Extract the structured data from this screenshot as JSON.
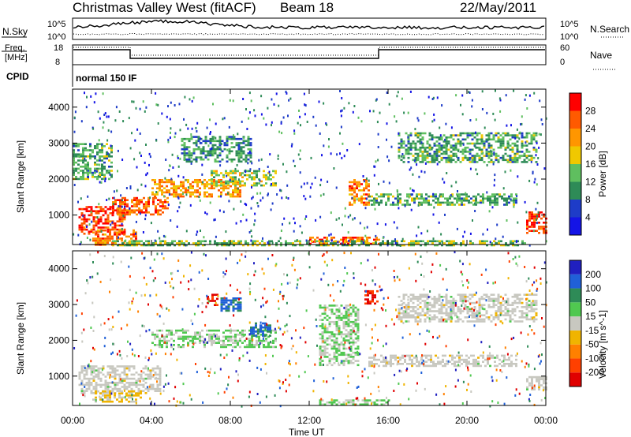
{
  "header": {
    "station": "Christmas Valley West (fitACF)",
    "beam": "Beam 18",
    "date": "22/May/2011"
  },
  "summary": {
    "nsky_label": "N.Sky",
    "nsearch_label": "N.Search",
    "left_ticks": [
      "10^5",
      "10^0"
    ],
    "right_ticks": [
      "10^5",
      "10^0"
    ],
    "freq_label_line1": "Freq.",
    "freq_label_line2": "[MHz]",
    "freq_ticks": [
      "18",
      "8"
    ],
    "nave_label": "Nave",
    "nave_ticks": [
      "60",
      "0"
    ],
    "cpid_label": "CPID",
    "cpid_value": "normal 150 IF"
  },
  "colors": {
    "power": [
      "#1414e6",
      "#1e3cc8",
      "#2e8b57",
      "#5fbf5f",
      "#f0c800",
      "#ff9600",
      "#ff5a00",
      "#ff0000"
    ],
    "velocity": [
      "#2020c0",
      "#2060d8",
      "#2e8b57",
      "#50c850",
      "#c8c8c0",
      "#f0b400",
      "#ff8000",
      "#ff4000",
      "#e00000"
    ],
    "background": "#ffffff"
  },
  "chart_data": [
    {
      "type": "heatmap",
      "name": "power",
      "ylabel": "Slant Range [km]",
      "xlabel": "",
      "x_ticks": [
        "00:00",
        "04:00",
        "08:00",
        "12:00",
        "16:00",
        "20:00",
        "00:00"
      ],
      "y_ticks": [
        "1000",
        "2000",
        "3000",
        "4000"
      ],
      "xlim_hours": [
        0,
        24
      ],
      "ylim_km": [
        180,
        4500
      ],
      "colorbar": {
        "label": "Power [dB]",
        "tick_labels": [
          "4",
          "8",
          "12",
          "16",
          "20",
          "24",
          "28"
        ],
        "range": [
          0,
          32
        ]
      },
      "regions": [
        {
          "t": [
            0.3,
            2.6
          ],
          "r": [
            500,
            1250
          ],
          "value": 28
        },
        {
          "t": [
            1.0,
            3.2
          ],
          "r": [
            150,
            600
          ],
          "value": 24
        },
        {
          "t": [
            2.0,
            4.8
          ],
          "r": [
            1000,
            1500
          ],
          "value": 26
        },
        {
          "t": [
            4.0,
            8.5
          ],
          "r": [
            1500,
            2000
          ],
          "value": 22
        },
        {
          "t": [
            7.0,
            10.3
          ],
          "r": [
            1800,
            2250
          ],
          "value": 16
        },
        {
          "t": [
            0.0,
            2.0
          ],
          "r": [
            2000,
            3000
          ],
          "value": 12
        },
        {
          "t": [
            5.5,
            9.0
          ],
          "r": [
            2500,
            3200
          ],
          "value": 10
        },
        {
          "t": [
            12.0,
            15.5
          ],
          "r": [
            200,
            400
          ],
          "value": 26
        },
        {
          "t": [
            14.0,
            15.0
          ],
          "r": [
            1300,
            2000
          ],
          "value": 24
        },
        {
          "t": [
            15.0,
            22.5
          ],
          "r": [
            1300,
            1600
          ],
          "value": 12
        },
        {
          "t": [
            16.5,
            23.5
          ],
          "r": [
            2500,
            3300
          ],
          "value": 12
        },
        {
          "t": [
            23.0,
            24.0
          ],
          "r": [
            500,
            1100
          ],
          "value": 28
        },
        {
          "t": [
            2.0,
            23.0
          ],
          "r": [
            180,
            300
          ],
          "value": 14
        }
      ]
    },
    {
      "type": "heatmap",
      "name": "velocity",
      "ylabel": "Slant Range [km]",
      "xlabel": "Time UT",
      "x_ticks": [
        "00:00",
        "04:00",
        "08:00",
        "12:00",
        "16:00",
        "20:00",
        "00:00"
      ],
      "y_ticks": [
        "1000",
        "2000",
        "3000",
        "4000"
      ],
      "xlim_hours": [
        0,
        24
      ],
      "ylim_km": [
        180,
        4500
      ],
      "colorbar": {
        "label": "Velocity [m s^-1]",
        "tick_labels": [
          "200",
          "100",
          "50",
          "15",
          "-15",
          "-50",
          "-100",
          "-200"
        ],
        "range": [
          -250,
          250
        ]
      },
      "regions": [
        {
          "t": [
            0.3,
            4.5
          ],
          "r": [
            500,
            1300
          ],
          "value": 0
        },
        {
          "t": [
            4.0,
            10.3
          ],
          "r": [
            1800,
            2300
          ],
          "value": 30
        },
        {
          "t": [
            6.8,
            7.3
          ],
          "r": [
            3000,
            3300
          ],
          "value": -200
        },
        {
          "t": [
            7.5,
            8.5
          ],
          "r": [
            2800,
            3200
          ],
          "value": 150
        },
        {
          "t": [
            9.0,
            10.0
          ],
          "r": [
            2100,
            2500
          ],
          "value": 150
        },
        {
          "t": [
            12.5,
            14.5
          ],
          "r": [
            1300,
            3000
          ],
          "value": 30
        },
        {
          "t": [
            12.5,
            16.0
          ],
          "r": [
            180,
            350
          ],
          "value": 30
        },
        {
          "t": [
            14.8,
            15.5
          ],
          "r": [
            3000,
            3400
          ],
          "value": -200
        },
        {
          "t": [
            15.0,
            22.5
          ],
          "r": [
            1300,
            1600
          ],
          "value": 0
        },
        {
          "t": [
            16.5,
            23.5
          ],
          "r": [
            2500,
            3300
          ],
          "value": 0
        },
        {
          "t": [
            1.0,
            3.5
          ],
          "r": [
            300,
            600
          ],
          "value": -40
        },
        {
          "t": [
            23.0,
            24.0
          ],
          "r": [
            600,
            1000
          ],
          "value": 0
        }
      ]
    }
  ]
}
